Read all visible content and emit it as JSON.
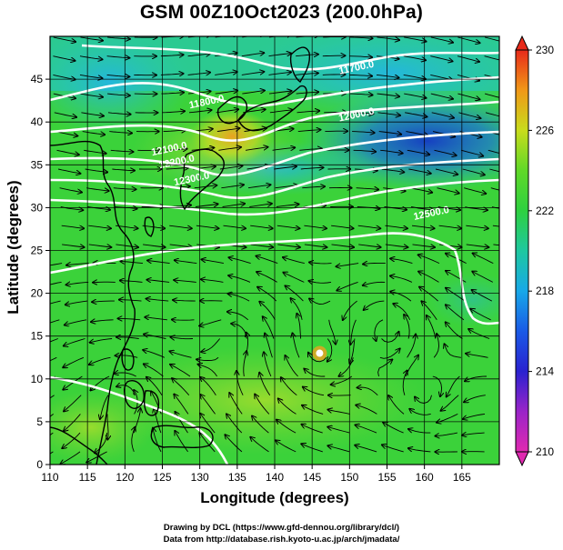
{
  "title": "GSM 00Z10Oct2023 (200.0hPa)",
  "xlabel": "Longitude (degrees)",
  "ylabel": "Latitude  (degrees)",
  "credits": [
    "Drawing by DCL (https://www.gfd-dennou.org/library/dcl/)",
    "Data from http://database.rish.kyoto-u.ac.jp/arch/jmadata/"
  ],
  "chart_data": {
    "type": "heatmap",
    "xlim": [
      110,
      170
    ],
    "ylim": [
      0,
      50
    ],
    "x_ticks": [
      110,
      115,
      120,
      125,
      130,
      135,
      140,
      145,
      150,
      155,
      160,
      165
    ],
    "y_ticks": [
      0,
      5,
      10,
      15,
      20,
      25,
      30,
      35,
      40,
      45
    ],
    "grid": true,
    "colorbar": {
      "min": 210,
      "max": 230,
      "ticks": [
        210,
        214,
        218,
        222,
        226,
        230
      ],
      "colors": [
        "#d61fa8",
        "#3a1fc9",
        "#1565e8",
        "#1ab9e6",
        "#20c98a",
        "#3bd62e",
        "#8fe01c",
        "#f0c81a",
        "#f07a14",
        "#e8301a"
      ]
    },
    "contours": [
      {
        "label": "11700.0",
        "lon": 151,
        "lat": 46
      },
      {
        "label": "11800.0",
        "lon": 131,
        "lat": 42
      },
      {
        "label": "12000.0",
        "lon": 151,
        "lat": 40.5
      },
      {
        "label": "12100.0",
        "lon": 126,
        "lat": 36.5
      },
      {
        "label": "12200.0",
        "lon": 127,
        "lat": 35
      },
      {
        "label": "12300.0",
        "lon": 129,
        "lat": 33
      },
      {
        "label": "12500.0",
        "lon": 161,
        "lat": 29
      }
    ],
    "typhoon_center": {
      "lon": 146,
      "lat": 13
    }
  }
}
